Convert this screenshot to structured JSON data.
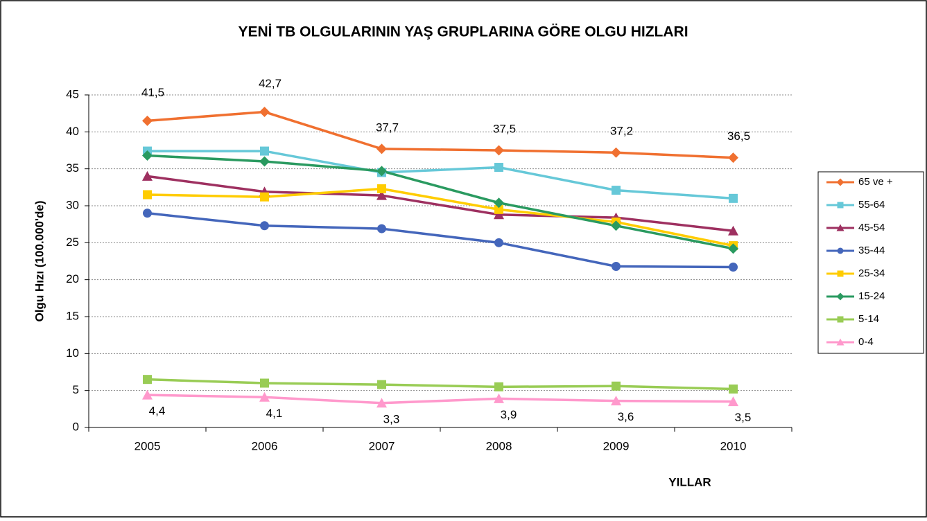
{
  "chart_data": {
    "type": "line",
    "title": "YENİ TB OLGULARININ YAŞ GRUPLARINA GÖRE OLGU HIZLARI",
    "x_label": "YILLAR",
    "y_label": "Olgu Hızı (100.000'de)",
    "categories": [
      "2005",
      "2006",
      "2007",
      "2008",
      "2009",
      "2010"
    ],
    "ylim": [
      0,
      45
    ],
    "yticks": [
      0,
      5,
      10,
      15,
      20,
      25,
      30,
      35,
      40,
      45
    ],
    "grid": true,
    "legend": "right",
    "series": [
      {
        "name": "65 ve +",
        "color": "#f07030",
        "marker": "diamond",
        "values": [
          41.5,
          42.7,
          37.7,
          37.5,
          37.2,
          36.5
        ],
        "value_labels": [
          "41,5",
          "42,7",
          "37,7",
          "37,5",
          "37,2",
          "36,5"
        ]
      },
      {
        "name": "55-64",
        "color": "#66c8d8",
        "marker": "square",
        "values": [
          37.4,
          37.4,
          34.5,
          35.2,
          32.1,
          31.0
        ]
      },
      {
        "name": "45-54",
        "color": "#9e3060",
        "marker": "triangle",
        "values": [
          34.0,
          31.9,
          31.4,
          28.8,
          28.4,
          26.6
        ]
      },
      {
        "name": "35-44",
        "color": "#4466bb",
        "marker": "circle",
        "values": [
          29.0,
          27.3,
          26.9,
          25.0,
          21.8,
          21.7
        ]
      },
      {
        "name": "25-34",
        "color": "#ffcc00",
        "marker": "square",
        "values": [
          31.5,
          31.2,
          32.3,
          29.5,
          27.8,
          24.6
        ]
      },
      {
        "name": "15-24",
        "color": "#2a9a60",
        "marker": "diamond",
        "values": [
          36.8,
          36.0,
          34.7,
          30.4,
          27.3,
          24.2
        ]
      },
      {
        "name": "5-14",
        "color": "#99cc55",
        "marker": "square",
        "values": [
          6.5,
          6.0,
          5.8,
          5.5,
          5.6,
          5.2
        ]
      },
      {
        "name": "0-4",
        "color": "#ff99cc",
        "marker": "triangle",
        "values": [
          4.4,
          4.1,
          3.3,
          3.9,
          3.6,
          3.5
        ],
        "value_labels": [
          "4,4",
          "4,1",
          "3,3",
          "3,9",
          "3,6",
          "3,5"
        ]
      }
    ]
  }
}
